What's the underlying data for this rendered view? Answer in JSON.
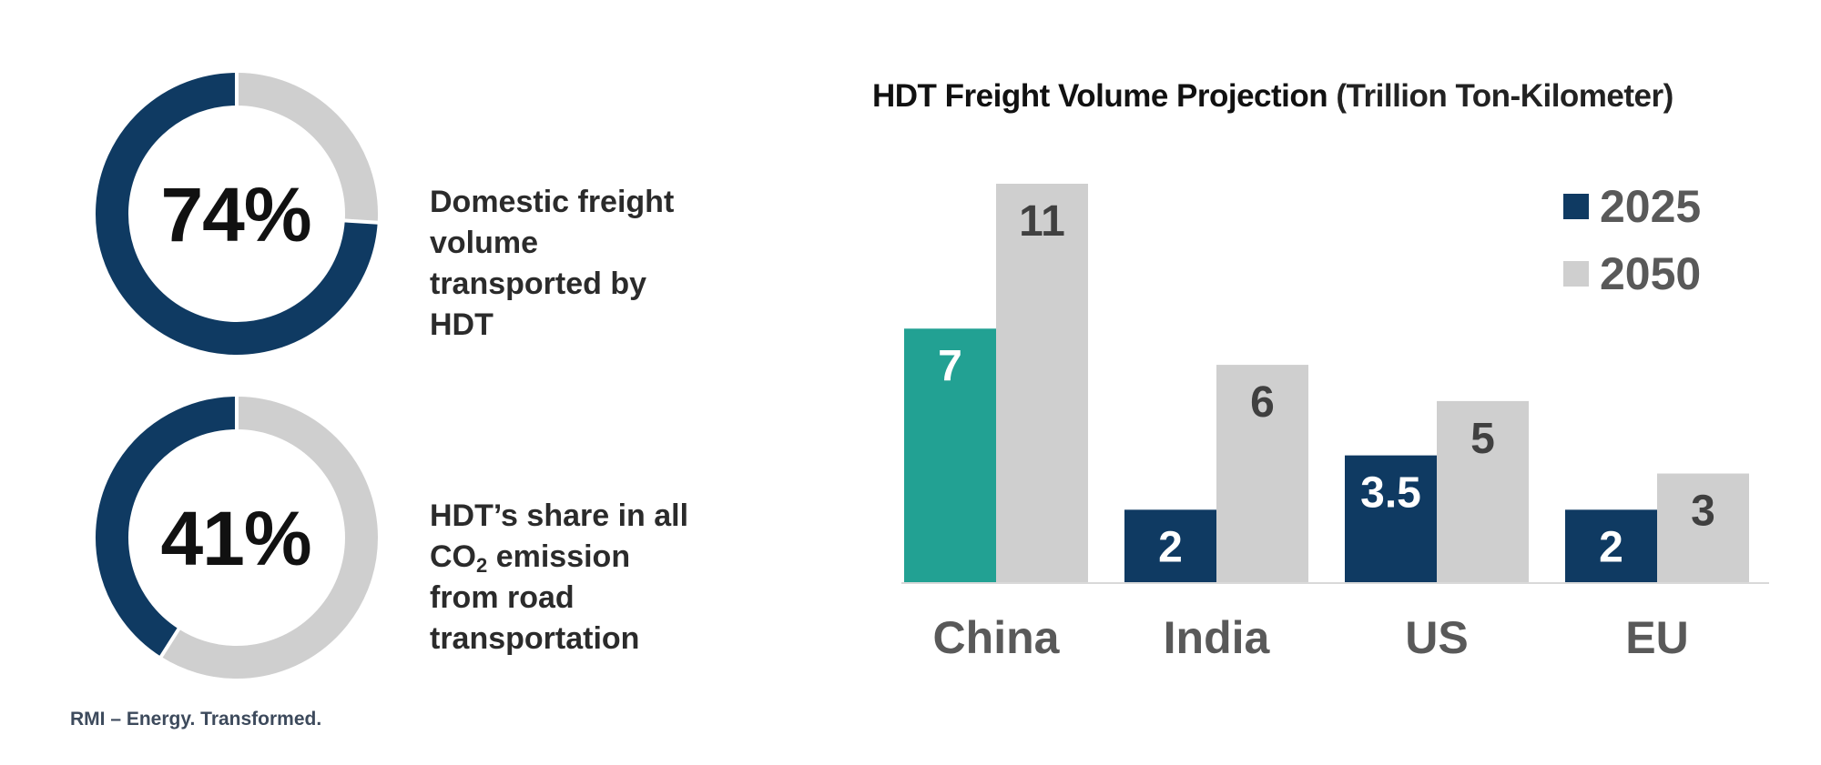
{
  "stats": [
    {
      "pct_label": "74%",
      "fraction": 0.74,
      "desc_lines": [
        "Domestic freight",
        "volume",
        "transported by",
        "HDT"
      ]
    },
    {
      "pct_label": "41%",
      "fraction": 0.41,
      "desc_line1": "HDT’s share in all",
      "desc_co": "CO",
      "desc_sub": "2",
      "desc_tail": " emission",
      "desc_line3": "from road",
      "desc_line4": "transportation"
    }
  ],
  "footer": "RMI – Energy. Transformed.",
  "colors": {
    "navy": "#0f3a62",
    "gray": "#cfcfcf",
    "teal": "#22a193",
    "label_dark": "#404040",
    "label_light": "#ffffff",
    "category": "#595959"
  },
  "chart_data": {
    "type": "bar",
    "title": "HDT Freight Volume Projection",
    "title_unit": "(Trillion Ton-Kilometer)",
    "categories": [
      "China",
      "India",
      "US",
      "EU"
    ],
    "series": [
      {
        "name": "2025",
        "values": [
          7,
          2,
          3.5,
          2
        ],
        "labels": [
          "7",
          "2",
          "3.5",
          "2"
        ]
      },
      {
        "name": "2050",
        "values": [
          11,
          6,
          5,
          3
        ],
        "labels": [
          "11",
          "6",
          "5",
          "3"
        ]
      }
    ],
    "highlight": {
      "series": 0,
      "category": 0,
      "color": "#22a193"
    },
    "ylim": [
      0,
      11
    ],
    "legend_position": "top-right",
    "grid": false
  }
}
